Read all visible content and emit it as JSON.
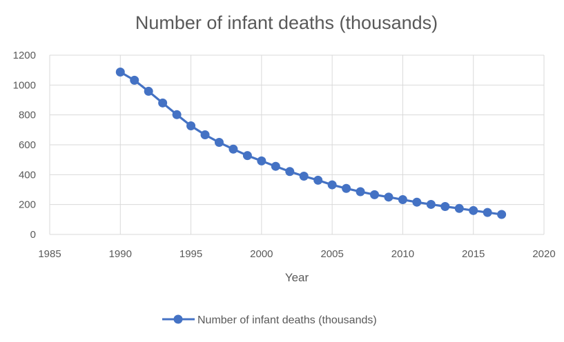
{
  "chart_data": {
    "type": "scatter",
    "title": "Number of infant deaths (thousands)",
    "xlabel": "Year",
    "ylabel": "",
    "xlim": [
      1985,
      2020
    ],
    "ylim": [
      0,
      1200
    ],
    "xticks": [
      "1985",
      "1990",
      "1995",
      "2000",
      "2005",
      "2010",
      "2015",
      "2020"
    ],
    "yticks": [
      "0",
      "200",
      "400",
      "600",
      "800",
      "1000",
      "1200"
    ],
    "grid": true,
    "legend": "bottom",
    "series": [
      {
        "name": "Number of infant deaths (thousands)",
        "color": "#4472C4",
        "marker": "circle",
        "line": true,
        "x": [
          1990,
          1991,
          1992,
          1993,
          1994,
          1995,
          1996,
          1997,
          1998,
          1999,
          2000,
          2001,
          2002,
          2003,
          2004,
          2005,
          2006,
          2007,
          2008,
          2009,
          2010,
          2011,
          2012,
          2013,
          2014,
          2015,
          2016,
          2017
        ],
        "y": [
          1087,
          1032,
          958,
          880,
          802,
          727,
          667,
          616,
          571,
          528,
          492,
          456,
          421,
          390,
          363,
          332,
          308,
          286,
          266,
          250,
          233,
          216,
          201,
          187,
          174,
          160,
          147,
          134
        ]
      }
    ]
  }
}
